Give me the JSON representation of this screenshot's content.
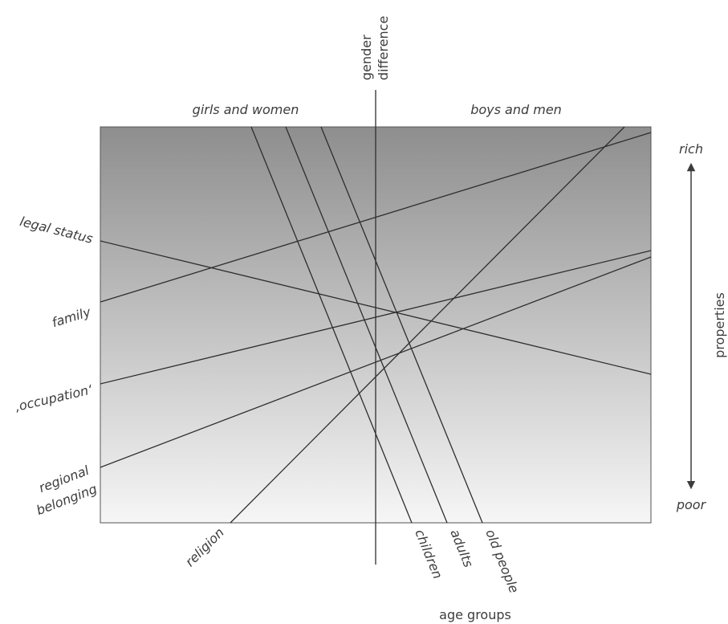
{
  "axis_labels": {
    "gender_line1": "gender",
    "gender_line2": "difference",
    "girls_and_women": "girls and women",
    "boys_and_men": "boys and men",
    "rich": "rich",
    "poor": "poor",
    "properties": "properties",
    "age_groups": "age groups"
  },
  "line_labels": {
    "legal_status": "legal status",
    "family": "family",
    "occupation": "‚occupation‘",
    "regional_line1": "regional",
    "regional_line2": "belonging",
    "religion": "religion",
    "children": "children",
    "adults": "adults",
    "old_people": "old people"
  },
  "colors": {
    "gradient_top": "#8e8e8e",
    "gradient_bottom": "#f6f6f6",
    "line": "#2e2e2e",
    "text": "#3c3c3c"
  }
}
